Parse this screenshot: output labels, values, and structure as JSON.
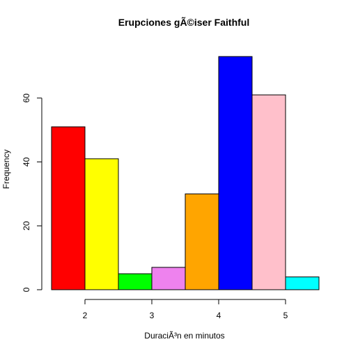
{
  "chart_data": {
    "type": "bar",
    "title": "Erupciones gÃ©iser Faithful",
    "xlabel": "DuraciÃ³n en minutos",
    "ylabel": "Frequency",
    "bins": [
      {
        "start": 1.5,
        "end": 2.0,
        "count": 51,
        "color": "#ff0000"
      },
      {
        "start": 2.0,
        "end": 2.5,
        "count": 41,
        "color": "#ffff00"
      },
      {
        "start": 2.5,
        "end": 3.0,
        "count": 5,
        "color": "#00ff00"
      },
      {
        "start": 3.0,
        "end": 3.5,
        "count": 7,
        "color": "#ee82ee"
      },
      {
        "start": 3.5,
        "end": 4.0,
        "count": 30,
        "color": "#ffa500"
      },
      {
        "start": 4.0,
        "end": 4.5,
        "count": 73,
        "color": "#0000ff"
      },
      {
        "start": 4.5,
        "end": 5.0,
        "count": 61,
        "color": "#ffc0cb"
      },
      {
        "start": 5.0,
        "end": 5.5,
        "count": 4,
        "color": "#00ffff"
      }
    ],
    "x_ticks": [
      2,
      3,
      4,
      5
    ],
    "y_ticks": [
      0,
      20,
      40,
      60
    ],
    "xlim": [
      1.5,
      5.5
    ],
    "ylim": [
      0,
      75
    ],
    "grid": false,
    "legend": "none"
  }
}
